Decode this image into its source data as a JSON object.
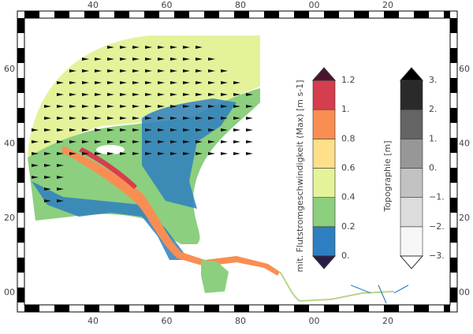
{
  "map": {
    "x_tick_labels": [
      "40",
      "60",
      "80",
      "00",
      "20"
    ],
    "y_tick_labels": [
      "60",
      "40",
      "20",
      "00"
    ],
    "colorbars": [
      {
        "title": "mit. Flutstromgeschwindigkeit (Max) [m s-1]",
        "labels": [
          "0.",
          "0.2",
          "0.4",
          "0.6",
          "0.8",
          "1.",
          "1.2"
        ],
        "colors": [
          "#2e7fbf",
          "#8ccf7e",
          "#e4f29a",
          "#fedf8a",
          "#f98e52",
          "#d53e4f"
        ],
        "low_color": "#2a1d4a",
        "high_color": "#4a1530"
      },
      {
        "title": "Topographie [m]",
        "labels": [
          "−3.",
          "−2.",
          "−1.",
          "0.",
          "1.",
          "2.",
          "3."
        ],
        "colors": [
          "#f7f7f7",
          "#dcdcdc",
          "#c2c2c2",
          "#979797",
          "#646464",
          "#2a2a2a"
        ],
        "low_color": "#ffffff",
        "high_color": "#000000"
      }
    ]
  }
}
